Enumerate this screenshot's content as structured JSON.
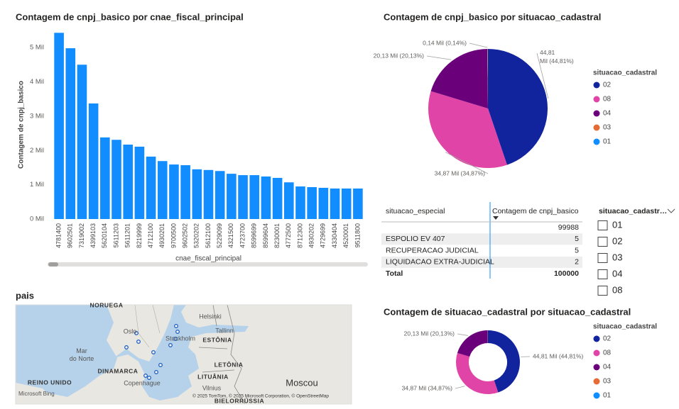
{
  "chart_data": [
    {
      "type": "bar",
      "title": "Contagem de cnpj_basico por cnae_fiscal_principal",
      "x_label": "cnae_fiscal_principal",
      "y_label": "Contagem de cnpj_basico",
      "categories": [
        "4781400",
        "9602501",
        "7319002",
        "4399103",
        "5620104",
        "5611203",
        "5611201",
        "8219999",
        "4712100",
        "4930201",
        "9700500",
        "9602502",
        "5320202",
        "5612100",
        "5229099",
        "4321500",
        "4723700",
        "8599699",
        "8599604",
        "8230001",
        "4772500",
        "8712300",
        "4930202",
        "4729699",
        "4330404",
        "4520001",
        "9511800"
      ],
      "values": [
        5430,
        4980,
        4500,
        3370,
        2380,
        2310,
        2170,
        2110,
        1820,
        1690,
        1590,
        1570,
        1450,
        1430,
        1400,
        1320,
        1280,
        1280,
        1240,
        1200,
        1070,
        950,
        930,
        910,
        890,
        890,
        890
      ],
      "color": "#118dff",
      "ylim": [
        0,
        5560
      ],
      "yticks": [
        {
          "value": 0,
          "label": "0 Mil"
        },
        {
          "value": 1000,
          "label": "1 Mil"
        },
        {
          "value": 2000,
          "label": "2 Mil"
        },
        {
          "value": 3000,
          "label": "3 Mil"
        },
        {
          "value": 4000,
          "label": "4 Mil"
        },
        {
          "value": 5000,
          "label": "5 Mil"
        }
      ],
      "grid": false
    },
    {
      "type": "pie",
      "title": "Contagem de cnpj_basico por situacao_cadastral",
      "legend_title": "situacao_cadastral",
      "categories": [
        "02",
        "08",
        "04",
        "03",
        "01"
      ],
      "values": [
        44810,
        34870,
        20130,
        140,
        50
      ],
      "value_labels": [
        "44,81 Mil (44,81%)",
        "34,87 Mil (34,87%)",
        "20,13 Mil (20,13%)",
        "0,14 Mil (0,14%)",
        null
      ],
      "colors": [
        "#12239e",
        "#e044a7",
        "#6b007b",
        "#e66c37",
        "#118dff"
      ],
      "legend": "right"
    },
    {
      "type": "donut",
      "title": "Contagem de situacao_cadastral por situacao_cadastral",
      "legend_title": "situacao_cadastral",
      "categories": [
        "02",
        "08",
        "04",
        "03",
        "01"
      ],
      "values": [
        44810,
        34870,
        20130,
        140,
        50
      ],
      "value_labels": [
        "44,81 Mil (44,81%)",
        "34,87 Mil (34,87%)",
        "20,13 Mil (20,13%)",
        null,
        null
      ],
      "colors": [
        "#12239e",
        "#e044a7",
        "#6b007b",
        "#e66c37",
        "#118dff"
      ],
      "legend": "right"
    }
  ],
  "table": {
    "headers": [
      "situacao_especial",
      "Contagem de cnpj_basico"
    ],
    "rows": [
      [
        null,
        99988
      ],
      [
        "ESPOLIO EV 407",
        5
      ],
      [
        "RECUPERACAO JUDICIAL",
        5
      ],
      [
        "LIQUIDACAO EXTRA-JUDICIAL",
        2
      ]
    ],
    "total": [
      "Total",
      100000
    ]
  },
  "slicer": {
    "title": "situacao_cadastr…",
    "items": [
      "01",
      "02",
      "03",
      "04",
      "08"
    ]
  },
  "map": {
    "title": "pais",
    "labels": [
      "NORUEGA",
      "Oslo",
      "Stockholm",
      "Helsinki",
      "Tallinn",
      "ESTÔNIA",
      "Mar do Norte",
      "DINAMARCA",
      "Copenhague",
      "LETÔNIA",
      "LITUÂNIA",
      "Vilnius",
      "REINO UNIDO",
      "Moscou",
      "BIELORRÚSSIA"
    ],
    "attribution": "© 2025 TomTom, © 2025 Microsoft Corporation, © OpenStreetMap",
    "logo": "Microsoft Bing"
  }
}
